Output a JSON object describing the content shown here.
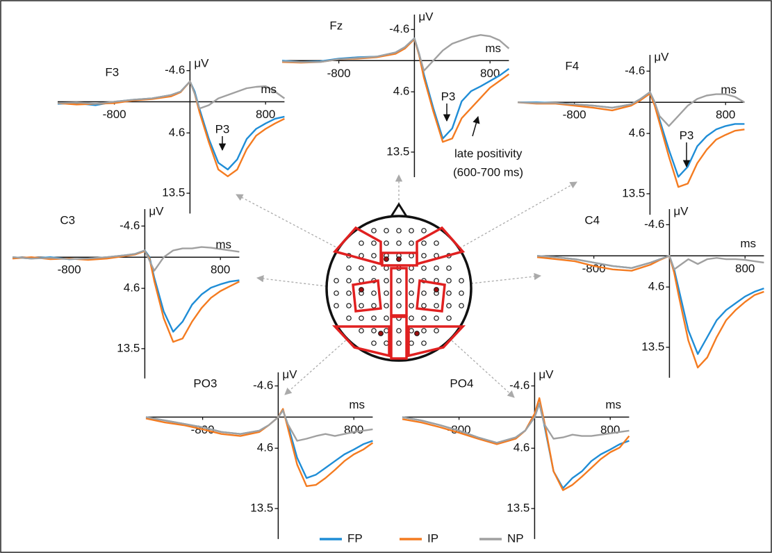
{
  "chart_data": [
    {
      "type": "line",
      "title": "F3",
      "y_label": "μV",
      "x_label": "ms",
      "invert_y": true,
      "x": [
        -1400,
        -1200,
        -1000,
        -800,
        -600,
        -400,
        -200,
        -100,
        0,
        50,
        100,
        200,
        300,
        400,
        500,
        600,
        700,
        800,
        900,
        1000
      ],
      "xlim": [
        -1400,
        1000
      ],
      "ylim": [
        -6,
        16.5
      ],
      "xticks": [
        -800,
        800
      ],
      "yticks": [
        -4.6,
        4.6,
        13.5
      ],
      "series": [
        {
          "name": "FP",
          "color": "#1f8dd6",
          "values": [
            0.3,
            0.2,
            0.5,
            0,
            -0.3,
            -0.5,
            -1,
            -1.5,
            -3,
            -1.5,
            1,
            5.5,
            9,
            10,
            8.5,
            5.5,
            4,
            3.2,
            2.5,
            2.2
          ]
        },
        {
          "name": "IP",
          "color": "#f47b20",
          "values": [
            0.2,
            0.4,
            0.3,
            0.2,
            -0.2,
            -0.4,
            -0.8,
            -1.4,
            -3,
            -1.2,
            1.5,
            6,
            10,
            11,
            10,
            7,
            5,
            4,
            3.2,
            2.5
          ]
        },
        {
          "name": "NP",
          "color": "#a0a0a0",
          "values": [
            0.2,
            0.1,
            0.3,
            0,
            -0.3,
            -0.5,
            -1,
            -1.5,
            -3,
            -1.2,
            1,
            0.5,
            -0.5,
            -1,
            -1.5,
            -2,
            -2.2,
            -2.3,
            -1.5,
            -0.5
          ]
        }
      ],
      "annotations": [
        "P3"
      ]
    },
    {
      "type": "line",
      "title": "Fz",
      "y_label": "μV",
      "x_label": "ms",
      "invert_y": true,
      "x": [
        -1400,
        -1200,
        -1000,
        -800,
        -600,
        -400,
        -200,
        -100,
        0,
        50,
        100,
        200,
        300,
        400,
        500,
        600,
        700,
        800,
        900,
        1000
      ],
      "xlim": [
        -1400,
        1000
      ],
      "ylim": [
        -6.8,
        17.2
      ],
      "xticks": [
        -800,
        800
      ],
      "yticks": [
        -4.6,
        4.6,
        13.5
      ],
      "series": [
        {
          "name": "FP",
          "color": "#1f8dd6",
          "values": [
            0,
            0.2,
            0.1,
            -0.3,
            -0.5,
            -0.6,
            -1.2,
            -2,
            -3.3,
            -1,
            2,
            7,
            11.5,
            10,
            6,
            4.5,
            3.8,
            3,
            2.2,
            1.2
          ]
        },
        {
          "name": "IP",
          "color": "#f47b20",
          "values": [
            0.2,
            0.3,
            0.2,
            -0.2,
            -0.3,
            -0.5,
            -1,
            -1.8,
            -3.2,
            -0.8,
            2.5,
            7.5,
            12,
            11.5,
            8.5,
            7,
            5.5,
            4,
            3,
            2
          ]
        },
        {
          "name": "NP",
          "color": "#a0a0a0",
          "values": [
            0.1,
            0.2,
            0.2,
            -0.2,
            -0.4,
            -0.6,
            -1.2,
            -2,
            -3.3,
            -1,
            1.5,
            0,
            -1.5,
            -2.5,
            -3,
            -3.5,
            -3.8,
            -3.6,
            -3,
            -1.8
          ]
        }
      ],
      "annotations": [
        "P3",
        "late positivity",
        "(600-700 ms)"
      ]
    },
    {
      "type": "line",
      "title": "F4",
      "y_label": "μV",
      "x_label": "ms",
      "invert_y": true,
      "x": [
        -1400,
        -1200,
        -1000,
        -800,
        -600,
        -400,
        -200,
        -100,
        0,
        50,
        100,
        200,
        300,
        400,
        500,
        600,
        700,
        800,
        900,
        1000
      ],
      "xlim": [
        -1400,
        1000
      ],
      "ylim": [
        -7,
        16.6
      ],
      "xticks": [
        -800,
        800
      ],
      "yticks": [
        -4.6,
        4.6,
        13.5
      ],
      "series": [
        {
          "name": "FP",
          "color": "#1f8dd6",
          "values": [
            0,
            0,
            0.1,
            0.3,
            0.5,
            0.8,
            0.3,
            -0.5,
            -1.5,
            0,
            2.5,
            7,
            11,
            9.5,
            6.5,
            5,
            4,
            3.5,
            3.2,
            3.2
          ]
        },
        {
          "name": "IP",
          "color": "#f47b20",
          "values": [
            0,
            0.2,
            0.2,
            0.5,
            0.8,
            1.2,
            0.5,
            -0.3,
            -1.3,
            0.5,
            3,
            8,
            12.5,
            12,
            9,
            7,
            5.5,
            4.8,
            4.2,
            4
          ]
        },
        {
          "name": "NP",
          "color": "#a0a0a0",
          "values": [
            0,
            0.1,
            0.1,
            0.3,
            0.5,
            0.8,
            0.3,
            -0.5,
            -1.5,
            0,
            2,
            3.5,
            2,
            0.5,
            -0.5,
            -1,
            -1.2,
            -1.2,
            -0.8,
            0
          ]
        }
      ],
      "annotations": [
        "P3"
      ]
    },
    {
      "type": "line",
      "title": "C3",
      "y_label": "μV",
      "x_label": "ms",
      "invert_y": true,
      "x": [
        -1400,
        -1200,
        -1000,
        -800,
        -600,
        -400,
        -200,
        -100,
        0,
        50,
        100,
        200,
        300,
        400,
        500,
        600,
        700,
        800,
        900,
        1000
      ],
      "xlim": [
        -1400,
        1000
      ],
      "ylim": [
        -7.1,
        17.9
      ],
      "xticks": [
        -800,
        800
      ],
      "yticks": [
        -4.6,
        4.6,
        13.5
      ],
      "series": [
        {
          "name": "FP",
          "color": "#1f8dd6",
          "values": [
            0,
            0.2,
            0,
            0.3,
            0.2,
            0,
            -0.3,
            -0.5,
            -1,
            0,
            3,
            8,
            11,
            9.5,
            7,
            5.5,
            4.5,
            4,
            3.6,
            3.4
          ]
        },
        {
          "name": "IP",
          "color": "#f47b20",
          "values": [
            0.2,
            0,
            0.3,
            0.2,
            0.4,
            0.2,
            -0.2,
            -0.4,
            -0.9,
            0.2,
            3.5,
            9,
            12.5,
            12,
            9.5,
            7.5,
            6,
            5,
            4.3,
            3.6
          ]
        },
        {
          "name": "NP",
          "color": "#a0a0a0",
          "values": [
            0,
            0.2,
            0.1,
            0.3,
            0.2,
            0,
            -0.3,
            -0.5,
            -1,
            0.5,
            2,
            0,
            -1,
            -1.3,
            -1.3,
            -1.5,
            -1.4,
            -1.2,
            -1,
            -0.8
          ]
        }
      ]
    },
    {
      "type": "line",
      "title": "C4",
      "y_label": "μV",
      "x_label": "ms",
      "invert_y": true,
      "x": [
        -1400,
        -1200,
        -1000,
        -800,
        -600,
        -400,
        -200,
        -100,
        0,
        50,
        100,
        200,
        300,
        400,
        500,
        600,
        700,
        800,
        900,
        1000
      ],
      "xlim": [
        -1400,
        1000
      ],
      "ylim": [
        -6.9,
        18
      ],
      "xticks": [
        -800,
        800
      ],
      "yticks": [
        -4.6,
        4.6,
        13.5
      ],
      "series": [
        {
          "name": "FP",
          "color": "#1f8dd6",
          "values": [
            0,
            0.2,
            0.5,
            1,
            1.5,
            1.8,
            1,
            0.5,
            0,
            2,
            5,
            11,
            14.5,
            12,
            9.5,
            8,
            7,
            6,
            5.3,
            4.8
          ]
        },
        {
          "name": "IP",
          "color": "#f47b20",
          "values": [
            0.2,
            0.5,
            0.8,
            1.5,
            2,
            2.2,
            1.3,
            0.6,
            0,
            2.5,
            6,
            12.5,
            16.5,
            15,
            12,
            9.5,
            8,
            6.8,
            5.8,
            5.3
          ]
        },
        {
          "name": "NP",
          "color": "#a0a0a0",
          "values": [
            0,
            0.2,
            0.5,
            1,
            1.5,
            1.8,
            1,
            0.5,
            0,
            2,
            1.5,
            0.5,
            1.2,
            0.5,
            0.3,
            0.5,
            0.5,
            0.6,
            0.8,
            1
          ]
        }
      ]
    },
    {
      "type": "line",
      "title": "PO3",
      "y_label": "μV",
      "x_label": "ms",
      "invert_y": true,
      "x": [
        -1400,
        -1200,
        -1000,
        -800,
        -600,
        -400,
        -200,
        -100,
        0,
        50,
        100,
        200,
        300,
        400,
        500,
        600,
        700,
        800,
        900,
        1000
      ],
      "xlim": [
        -1400,
        1000
      ],
      "ylim": [
        -6.6,
        18
      ],
      "xticks": [
        -800,
        800
      ],
      "yticks": [
        -4.6,
        4.6,
        13.5
      ],
      "series": [
        {
          "name": "FP",
          "color": "#1f8dd6",
          "values": [
            0,
            0.5,
            1,
            1.5,
            2.2,
            2.5,
            2,
            1.2,
            0,
            -1,
            1,
            6,
            9,
            8.5,
            7.5,
            6.5,
            5.5,
            4.8,
            4,
            3.5
          ]
        },
        {
          "name": "IP",
          "color": "#f47b20",
          "values": [
            0.2,
            0.8,
            1.2,
            1.8,
            2.5,
            2.8,
            2.2,
            1.2,
            0,
            -1.2,
            1.5,
            7,
            10.2,
            10,
            9,
            7.8,
            6.5,
            5.5,
            4.8,
            3.8
          ]
        },
        {
          "name": "NP",
          "color": "#a0a0a0",
          "values": [
            0,
            0.5,
            1,
            1.5,
            2.2,
            2.5,
            2,
            1.2,
            0,
            -1,
            1,
            3.5,
            3.2,
            2.8,
            2.5,
            2.8,
            2.5,
            2.2,
            2,
            1.8
          ]
        }
      ]
    },
    {
      "type": "line",
      "title": "PO4",
      "y_label": "μV",
      "x_label": "ms",
      "invert_y": true,
      "x": [
        -1400,
        -1200,
        -1000,
        -800,
        -600,
        -400,
        -200,
        -100,
        0,
        50,
        100,
        200,
        300,
        400,
        500,
        600,
        700,
        800,
        900,
        1000
      ],
      "xlim": [
        -1400,
        1000
      ],
      "ylim": [
        -6.6,
        18
      ],
      "xticks": [
        -800,
        800
      ],
      "yticks": [
        -4.6,
        4.6,
        13.5
      ],
      "series": [
        {
          "name": "FP",
          "color": "#1f8dd6",
          "values": [
            0,
            0.5,
            1.2,
            2,
            3,
            3.8,
            3,
            2,
            0,
            -2,
            1,
            8,
            10.5,
            9,
            8,
            6.5,
            5.5,
            4.8,
            4,
            3.5
          ]
        },
        {
          "name": "IP",
          "color": "#f47b20",
          "values": [
            0.3,
            0.8,
            1.5,
            2.3,
            3.2,
            4,
            3.2,
            2,
            -0.5,
            -2.8,
            0.5,
            8,
            10.8,
            10,
            8.8,
            7.5,
            6.2,
            5.2,
            4.5,
            2.8
          ]
        },
        {
          "name": "NP",
          "color": "#a0a0a0",
          "values": [
            0,
            0.5,
            1.2,
            2,
            3,
            3.8,
            3,
            2,
            0,
            -2,
            1,
            3.2,
            3,
            2.6,
            2.8,
            2.8,
            2.6,
            2.4,
            2.2,
            2
          ]
        }
      ]
    }
  ]
}
